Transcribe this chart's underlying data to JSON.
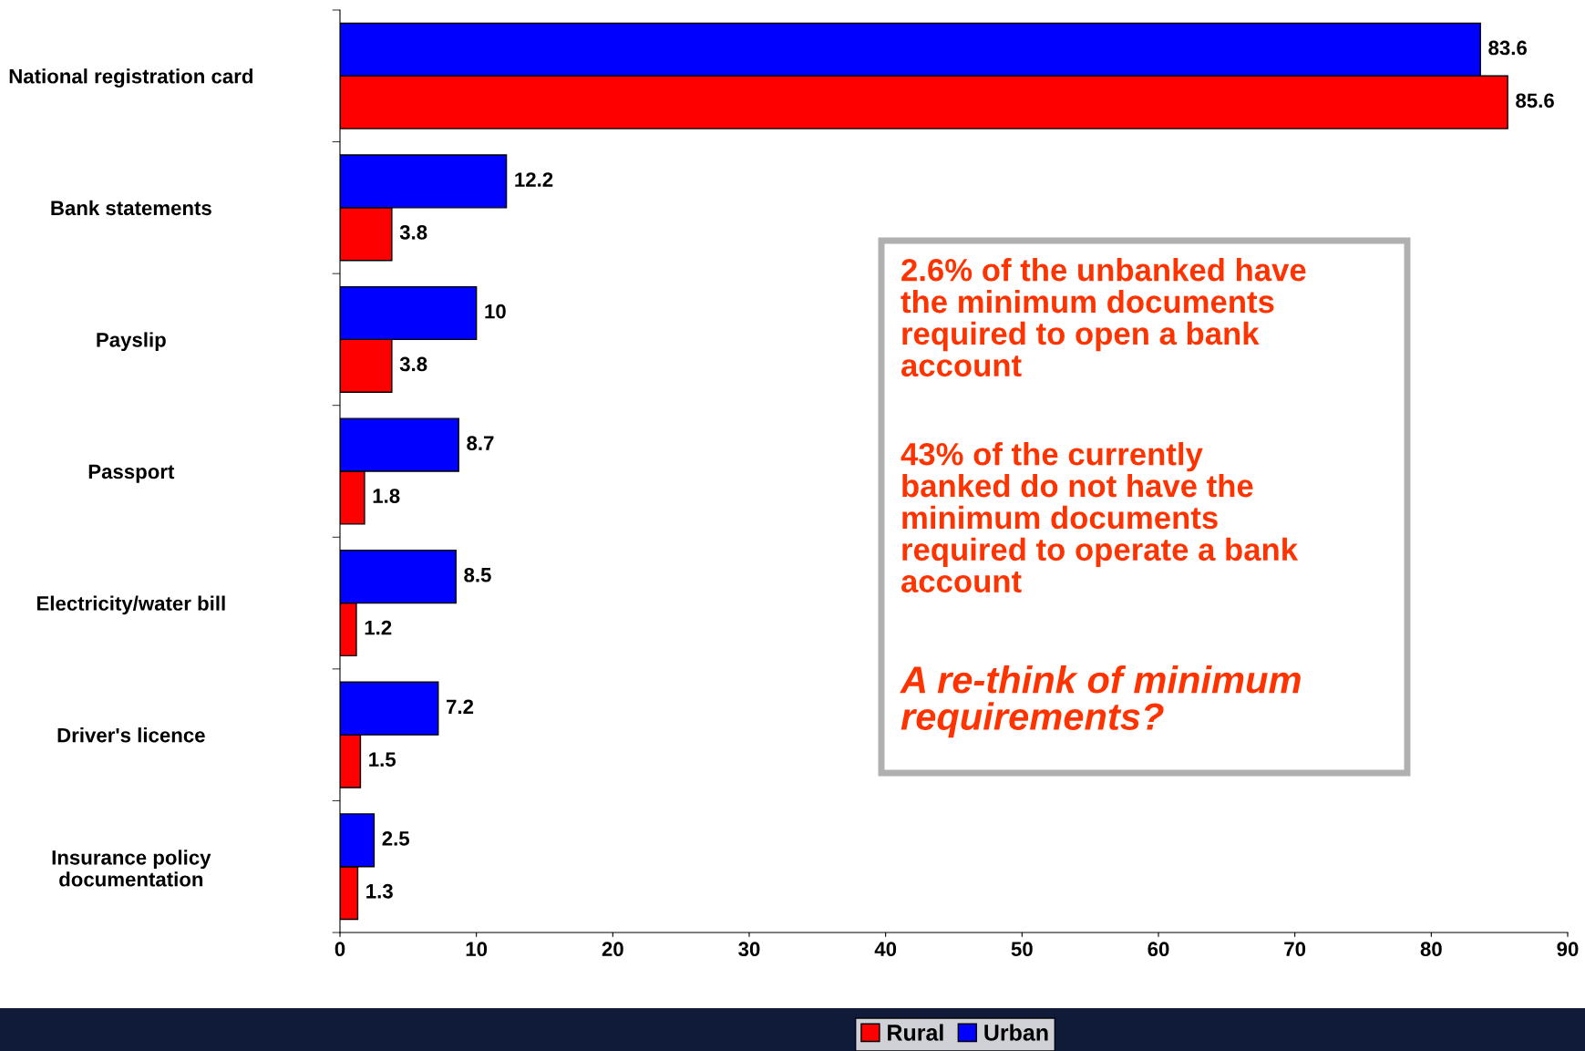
{
  "chart_data": {
    "type": "bar",
    "orientation": "horizontal",
    "categories": [
      "National registration card",
      "Bank statements",
      "Payslip",
      "Passport",
      "Electricity/water bill",
      "Driver's licence",
      "Insurance policy\ndocumentation"
    ],
    "series": [
      {
        "name": "Rural",
        "color": "#ff0000",
        "values": [
          85.6,
          3.8,
          3.8,
          1.8,
          1.2,
          1.5,
          1.3
        ]
      },
      {
        "name": "Urban",
        "color": "#0000ff",
        "values": [
          83.6,
          12.2,
          10,
          8.7,
          8.5,
          7.2,
          2.5
        ]
      }
    ],
    "xlim": [
      0,
      90
    ],
    "xticks": [
      0,
      10,
      20,
      30,
      40,
      50,
      60,
      70,
      80,
      90
    ],
    "data_labels": true,
    "grid": false,
    "legend": "bottom",
    "annotations": [
      "2.6% of the unbanked have\nthe minimum documents\nrequired to open a bank\naccount",
      "43% of the currently\nbanked do not have the\nminimum documents\nrequired to operate a bank\naccount",
      "A re-think of minimum\nrequirements?"
    ]
  }
}
